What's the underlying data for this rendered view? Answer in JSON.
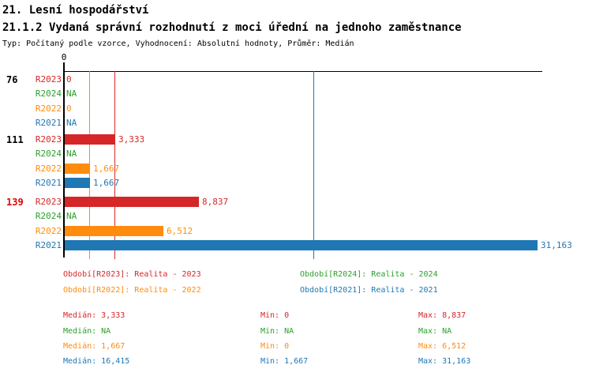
{
  "header": {
    "title": "21. Lesní hospodářství",
    "subtitle": "21.1.2 Vydaná správní rozhodnutí z moci úřední na jednoho zaměstnance",
    "meta": "Typ: Počítaný podle vzorce, Vyhodnocení: Absolutní hodnoty, Průměr: Medián"
  },
  "colors": {
    "r2023": "#d62728",
    "r2024": "#2ca02c",
    "r2022": "#ff8c0e",
    "r2021": "#1f77b4",
    "highlight_group": "#e00000",
    "axis": "#000000"
  },
  "chart_data": {
    "type": "bar",
    "orientation": "horizontal",
    "axis": {
      "zero_label": "0",
      "min_value": 0,
      "max_value": 31526,
      "grid": false
    },
    "series_colors": {
      "R2023": "#d62728",
      "R2024": "#2ca02c",
      "R2022": "#ff8c0e",
      "R2021": "#1f77b4"
    },
    "groups": [
      {
        "label": "76",
        "label_color": "#000000",
        "rows": [
          {
            "series": "R2023",
            "value": 0,
            "display": "0"
          },
          {
            "series": "R2024",
            "value": null,
            "display": "NA"
          },
          {
            "series": "R2022",
            "value": 0,
            "display": "0"
          },
          {
            "series": "R2021",
            "value": null,
            "display": "NA"
          }
        ]
      },
      {
        "label": "111",
        "label_color": "#000000",
        "rows": [
          {
            "series": "R2023",
            "value": 3333,
            "display": "3,333"
          },
          {
            "series": "R2024",
            "value": null,
            "display": "NA"
          },
          {
            "series": "R2022",
            "value": 1667,
            "display": "1,667"
          },
          {
            "series": "R2021",
            "value": 1667,
            "display": "1,667"
          }
        ]
      },
      {
        "label": "139",
        "label_color": "#e00000",
        "rows": [
          {
            "series": "R2023",
            "value": 8837,
            "display": "8,837"
          },
          {
            "series": "R2024",
            "value": null,
            "display": "NA"
          },
          {
            "series": "R2022",
            "value": 6512,
            "display": "6,512"
          },
          {
            "series": "R2021",
            "value": 31163,
            "display": "31,163"
          }
        ]
      }
    ],
    "median_lines": [
      {
        "series": "R2022",
        "value": 1667,
        "color": "#ff8c0e"
      },
      {
        "series": "R2023",
        "value": 3333,
        "color": "#d62728"
      },
      {
        "series": "R2021",
        "value": 16415,
        "color": "#1f77b4"
      }
    ]
  },
  "legend": {
    "items": [
      {
        "label": "Období[R2023]: Realita - 2023",
        "color": "#d62728"
      },
      {
        "label": "Období[R2024]: Realita - 2024",
        "color": "#2ca02c"
      },
      {
        "label": "Období[R2022]: Realita - 2022",
        "color": "#ff8c0e"
      },
      {
        "label": "Období[R2021]: Realita - 2021",
        "color": "#1f77b4"
      }
    ]
  },
  "stats": {
    "rows": [
      {
        "color": "#d62728",
        "median": "Medián: 3,333",
        "min": "Min: 0",
        "max": "Max: 8,837"
      },
      {
        "color": "#2ca02c",
        "median": "Medián: NA",
        "min": "Min: NA",
        "max": "Max: NA"
      },
      {
        "color": "#ff8c0e",
        "median": "Medián: 1,667",
        "min": "Min: 0",
        "max": "Max: 6,512"
      },
      {
        "color": "#1f77b4",
        "median": "Medián: 16,415",
        "min": "Min: 1,667",
        "max": "Max: 31,163"
      }
    ]
  }
}
